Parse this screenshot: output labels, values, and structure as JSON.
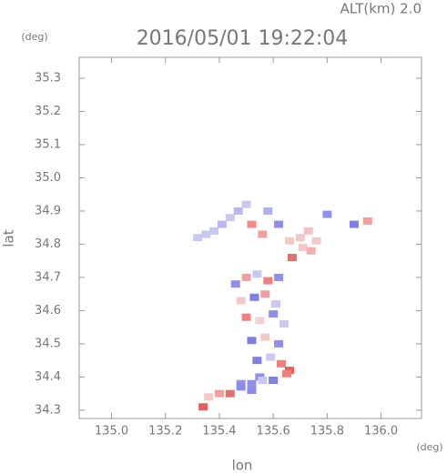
{
  "chart_data": {
    "type": "scatter",
    "annotation": "ALT(km) 2.0",
    "title": "2016/05/01 19:22:04",
    "y_unit": "(deg)",
    "x_unit": "(deg)",
    "ylabel": "lat",
    "xlabel": "lon",
    "xlim": [
      134.88,
      136.15
    ],
    "ylim": [
      34.275,
      35.363
    ],
    "xticks": [
      {
        "value": 135,
        "label": "135.0"
      },
      135.2,
      135.4,
      135.6,
      135.8,
      {
        "value": 136,
        "label": "136.0"
      }
    ],
    "yticks": [
      34.3,
      34.4,
      34.5,
      34.6,
      34.7,
      34.8,
      34.9,
      {
        "value": 35,
        "label": "35.0"
      },
      35.1,
      35.2,
      35.3
    ],
    "x": [
      135.32,
      135.35,
      135.38,
      135.41,
      135.44,
      135.47,
      135.5,
      135.52,
      135.58,
      135.56,
      135.62,
      135.66,
      135.7,
      135.73,
      135.76,
      135.71,
      135.67,
      135.74,
      135.9,
      135.95,
      135.8,
      135.46,
      135.5,
      135.54,
      135.58,
      135.62,
      135.48,
      135.53,
      135.57,
      135.61,
      135.5,
      135.55,
      135.6,
      135.64,
      135.52,
      135.57,
      135.62,
      135.54,
      135.59,
      135.63,
      135.66,
      135.55,
      135.6,
      135.65,
      135.52,
      135.48,
      135.36,
      135.4,
      135.44,
      135.48,
      135.52,
      135.56,
      135.34
    ],
    "y": [
      34.82,
      34.83,
      34.84,
      34.86,
      34.88,
      34.9,
      34.92,
      34.86,
      34.9,
      34.83,
      34.86,
      34.81,
      34.82,
      34.84,
      34.81,
      34.79,
      34.76,
      34.78,
      34.86,
      34.87,
      34.89,
      34.68,
      34.7,
      34.71,
      34.69,
      34.7,
      34.63,
      34.64,
      34.65,
      34.62,
      34.58,
      34.57,
      34.59,
      34.56,
      34.51,
      34.52,
      34.5,
      34.45,
      34.46,
      34.44,
      34.42,
      34.4,
      34.39,
      34.41,
      34.36,
      34.38,
      34.34,
      34.35,
      34.35,
      34.37,
      34.38,
      34.39,
      34.31
    ],
    "colors": [
      "#c8c8f0",
      "#c8c8f0",
      "#c8c8f0",
      "#b8b8f0",
      "#c8c8f0",
      "#b8b8f0",
      "#c8c8f0",
      "#f08c8c",
      "#b0b0f0",
      "#f0a0a0",
      "#9090e8",
      "#f5c8c8",
      "#f5c8c8",
      "#f5c0c0",
      "#f5c8c8",
      "#f5c8c8",
      "#e07070",
      "#f0b0b0",
      "#8080e0",
      "#f0a0a0",
      "#9090e8",
      "#9090e8",
      "#f0a0a0",
      "#c8c8f0",
      "#f08080",
      "#9090e8",
      "#f5c8c8",
      "#8080e0",
      "#f0a0a0",
      "#c8c8f0",
      "#f08080",
      "#f5d0d0",
      "#9090e8",
      "#c8c8f0",
      "#8080e0",
      "#f5c8c8",
      "#9090e8",
      "#8080e0",
      "#c8c8f0",
      "#f08080",
      "#e06060",
      "#9090e8",
      "#8080e0",
      "#f08080",
      "#8c8ce8",
      "#9090e8",
      "#f5c8c8",
      "#f0a0a0",
      "#e07070",
      "#8c8ce8",
      "#9090e8",
      "#c8c8f0",
      "#e06060"
    ]
  }
}
